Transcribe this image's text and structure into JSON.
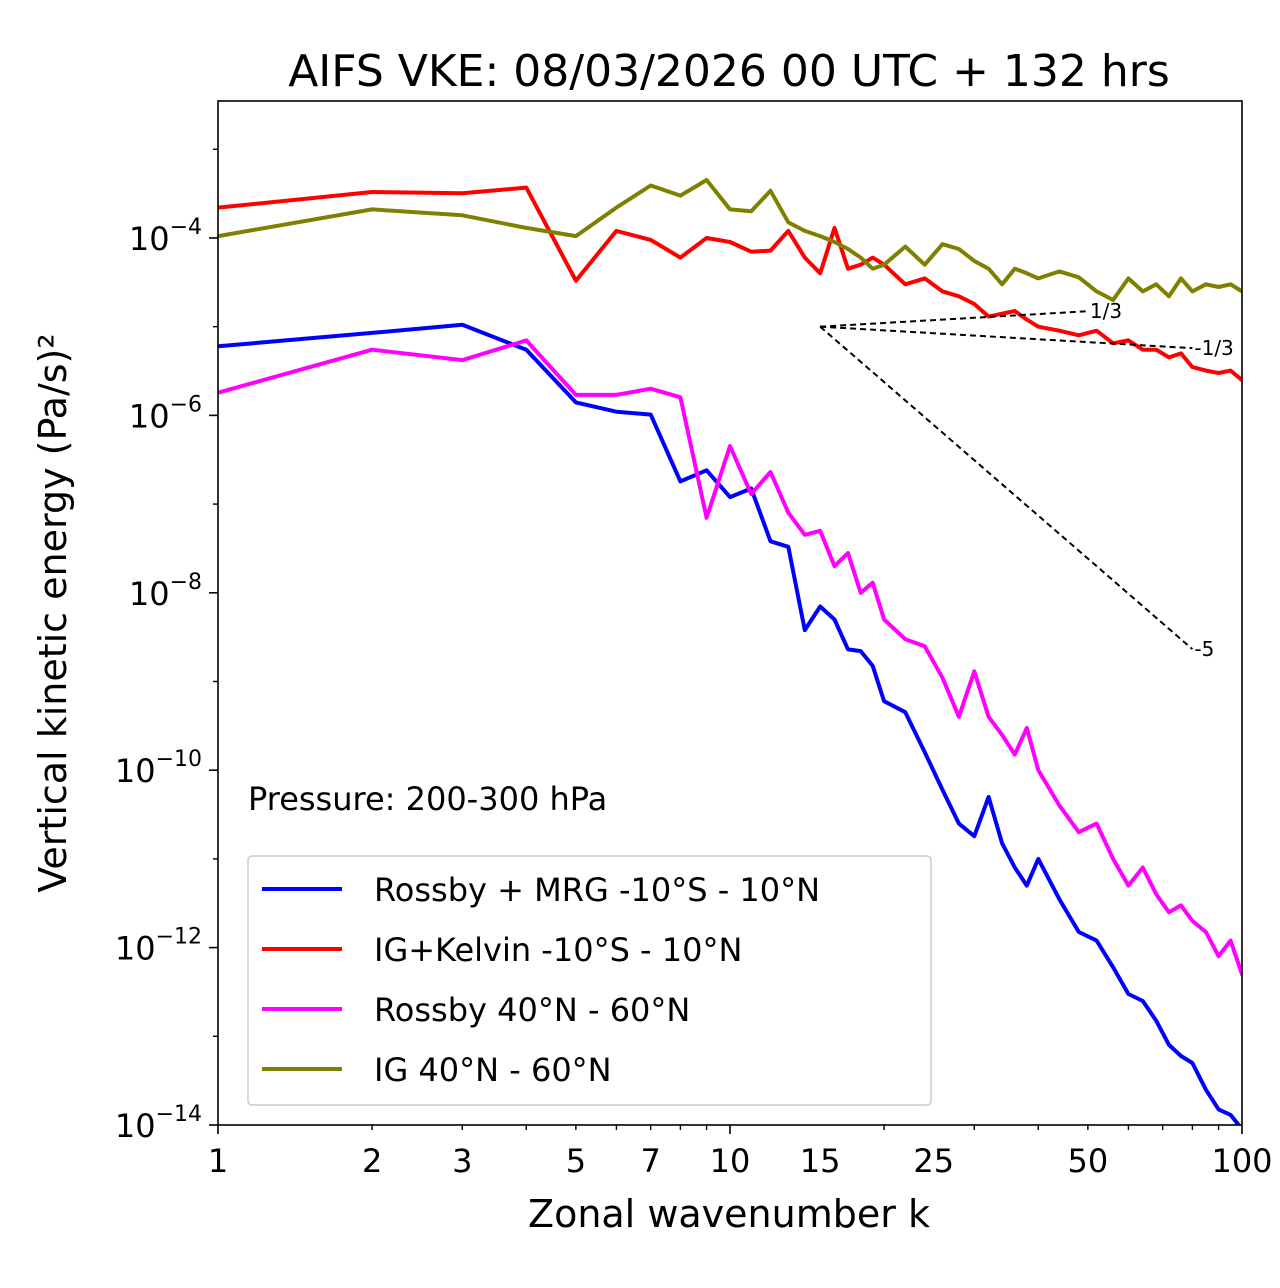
{
  "chart_data": {
    "type": "line",
    "title": "AIFS VKE: 08/03/2026 00 UTC + 132 hrs",
    "xlabel": "Zonal wavenumber k",
    "ylabel": "Vertical kinetic energy (Pa/s)²",
    "xscale": "log",
    "yscale": "log",
    "xlim": [
      1,
      100
    ],
    "ylim": [
      1e-14,
      0.0035
    ],
    "grid": false,
    "xticks": [
      1,
      2,
      3,
      5,
      7,
      10,
      15,
      25,
      50,
      100
    ],
    "yticks": [
      {
        "value": 0.0001,
        "label": "10",
        "exp": "−4"
      },
      {
        "value": 1e-06,
        "label": "10",
        "exp": "−6"
      },
      {
        "value": 1e-08,
        "label": "10",
        "exp": "−8"
      },
      {
        "value": 1e-10,
        "label": "10",
        "exp": "−10"
      },
      {
        "value": 1e-12,
        "label": "10",
        "exp": "−12"
      },
      {
        "value": 1e-14,
        "label": "10",
        "exp": "−14"
      }
    ],
    "annotation": "Pressure: 200-300 hPa",
    "legend_position": "lower-left",
    "series": [
      {
        "name": "Rossby + MRG -10°S - 10°N",
        "color": "#0000ff",
        "x": [
          1,
          2,
          3,
          4,
          5,
          6,
          7,
          8,
          9,
          10,
          11,
          12,
          13,
          14,
          15,
          16,
          17,
          18,
          19,
          20,
          22,
          24,
          26,
          28,
          30,
          32,
          34,
          36,
          38,
          40,
          44,
          48,
          52,
          56,
          60,
          64,
          68,
          72,
          76,
          80,
          85,
          90,
          95,
          100
        ],
        "y": [
          6e-06,
          8.5e-06,
          1.05e-05,
          5.5e-06,
          1.4e-06,
          1.1e-06,
          1.02e-06,
          1.8e-07,
          2.4e-07,
          1.2e-07,
          1.5e-07,
          3.8e-08,
          3.3e-08,
          3.8e-09,
          7e-09,
          5e-09,
          2.3e-09,
          2.2e-09,
          1.5e-09,
          6e-10,
          4.5e-10,
          1.6e-10,
          6e-11,
          2.5e-11,
          1.8e-11,
          5e-11,
          1.5e-11,
          8e-12,
          5e-12,
          1e-11,
          3.5e-12,
          1.5e-12,
          1.2e-12,
          6e-13,
          3e-13,
          2.5e-13,
          1.5e-13,
          8e-14,
          6e-14,
          5e-14,
          2.5e-14,
          1.5e-14,
          1.3e-14,
          9e-15
        ]
      },
      {
        "name": "IG+Kelvin -10°S - 10°N",
        "color": "#ff0000",
        "x": [
          1,
          2,
          3,
          4,
          5,
          6,
          7,
          8,
          9,
          10,
          11,
          12,
          13,
          14,
          15,
          16,
          17,
          18,
          19,
          20,
          22,
          24,
          26,
          28,
          30,
          32,
          34,
          36,
          38,
          40,
          44,
          48,
          52,
          56,
          60,
          64,
          68,
          72,
          76,
          80,
          85,
          90,
          95,
          100
        ],
        "y": [
          0.00022,
          0.00033,
          0.00032,
          0.00037,
          3.3e-05,
          0.00012,
          9.5e-05,
          6e-05,
          0.0001,
          9e-05,
          7e-05,
          7.2e-05,
          0.00012,
          6e-05,
          4e-05,
          0.00013,
          4.5e-05,
          5e-05,
          6e-05,
          5e-05,
          3e-05,
          3.5e-05,
          2.5e-05,
          2.2e-05,
          1.8e-05,
          1.3e-05,
          1.4e-05,
          1.5e-05,
          1.2e-05,
          1e-05,
          9e-06,
          8e-06,
          9e-06,
          6.5e-06,
          7e-06,
          5.5e-06,
          5.5e-06,
          4.5e-06,
          5e-06,
          3.5e-06,
          3.2e-06,
          3e-06,
          3.2e-06,
          2.5e-06
        ]
      },
      {
        "name": "Rossby 40°N - 60°N",
        "color": "#ff00ff",
        "x": [
          1,
          2,
          3,
          4,
          5,
          6,
          7,
          8,
          9,
          10,
          11,
          12,
          13,
          14,
          15,
          16,
          17,
          18,
          19,
          20,
          22,
          24,
          26,
          28,
          30,
          32,
          34,
          36,
          38,
          40,
          44,
          48,
          52,
          56,
          60,
          64,
          68,
          72,
          76,
          80,
          85,
          90,
          95,
          100
        ],
        "y": [
          1.8e-06,
          5.5e-06,
          4.2e-06,
          7e-06,
          1.7e-06,
          1.7e-06,
          2e-06,
          1.6e-06,
          7e-08,
          4.5e-07,
          1.3e-07,
          2.3e-07,
          8e-08,
          4.5e-08,
          5e-08,
          2e-08,
          2.8e-08,
          1e-08,
          1.3e-08,
          5e-09,
          3e-09,
          2.5e-09,
          1.1e-09,
          4e-10,
          1.3e-09,
          4e-10,
          2.5e-10,
          1.5e-10,
          3e-10,
          1e-10,
          4e-11,
          2e-11,
          2.5e-11,
          1e-11,
          5e-12,
          8e-12,
          4e-12,
          2.5e-12,
          3e-12,
          2e-12,
          1.5e-12,
          8e-13,
          1.2e-12,
          5e-13
        ]
      },
      {
        "name": "IG 40°N - 60°N",
        "color": "#808000",
        "x": [
          1,
          2,
          3,
          4,
          5,
          6,
          7,
          8,
          9,
          10,
          11,
          12,
          13,
          14,
          15,
          16,
          17,
          18,
          19,
          20,
          22,
          24,
          26,
          28,
          30,
          32,
          34,
          36,
          38,
          40,
          44,
          48,
          52,
          56,
          60,
          64,
          68,
          72,
          76,
          80,
          85,
          90,
          95,
          100
        ],
        "y": [
          0.000105,
          0.00021,
          0.00018,
          0.00013,
          0.000105,
          0.00022,
          0.00039,
          0.0003,
          0.00045,
          0.00021,
          0.0002,
          0.00034,
          0.00015,
          0.00012,
          0.000105,
          9e-05,
          7.5e-05,
          6e-05,
          4.5e-05,
          5e-05,
          8e-05,
          5e-05,
          8.5e-05,
          7.5e-05,
          5.5e-05,
          4.5e-05,
          3e-05,
          4.5e-05,
          4e-05,
          3.5e-05,
          4.2e-05,
          3.6e-05,
          2.5e-05,
          2e-05,
          3.5e-05,
          2.5e-05,
          3e-05,
          2.2e-05,
          3.5e-05,
          2.5e-05,
          3e-05,
          2.8e-05,
          3e-05,
          2.5e-05
        ]
      }
    ],
    "reference_lines": [
      {
        "label": "1/3",
        "slope": 0.3333,
        "x": [
          15,
          50
        ],
        "y0": 1e-05
      },
      {
        "label": "-1/3",
        "slope": -0.3333,
        "x": [
          15,
          80
        ],
        "y0": 1e-05
      },
      {
        "label": "-5",
        "slope": -5,
        "x": [
          15,
          80
        ],
        "y0": 1e-05
      }
    ]
  }
}
